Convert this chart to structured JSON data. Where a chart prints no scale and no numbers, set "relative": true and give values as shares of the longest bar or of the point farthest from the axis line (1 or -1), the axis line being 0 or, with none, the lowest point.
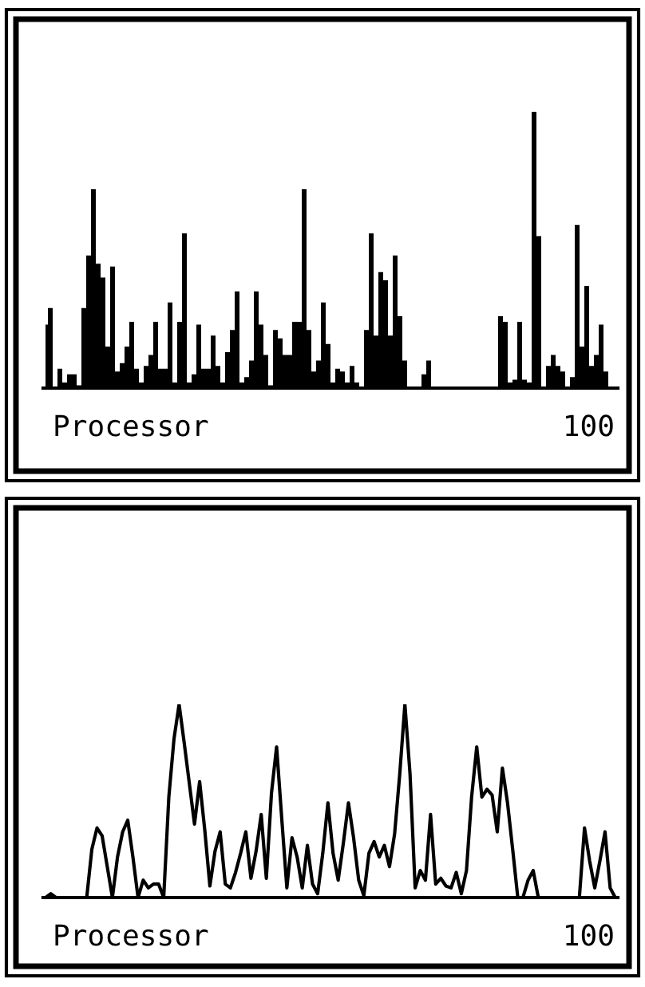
{
  "chart_data": [
    {
      "type": "area",
      "relative": true,
      "annotations": [
        "Processor",
        "100"
      ],
      "categories": [
        null,
        null,
        null,
        null,
        null,
        null,
        null,
        null,
        null,
        null,
        null,
        null,
        null,
        null,
        null,
        null,
        null,
        null,
        null,
        null,
        null,
        null,
        null,
        null,
        null,
        null,
        null,
        null,
        null,
        null,
        null,
        null,
        null,
        null,
        null,
        null,
        null,
        null,
        null,
        null,
        null,
        null,
        null,
        null,
        null,
        null,
        null,
        null,
        null,
        null,
        null,
        null,
        null,
        null,
        null,
        null,
        null,
        null,
        null,
        null,
        null,
        null,
        null,
        null,
        null,
        null,
        null,
        null,
        null,
        null,
        null,
        null,
        null,
        null,
        null,
        null,
        null,
        null,
        null,
        null,
        null,
        null,
        null,
        null,
        null,
        null,
        null,
        null,
        null,
        null,
        null,
        null,
        null,
        null,
        null,
        null,
        null,
        null,
        null,
        null,
        null,
        null,
        null,
        null,
        null,
        null,
        null,
        null,
        null,
        null,
        null,
        null,
        null,
        null,
        null,
        null,
        null,
        null,
        null,
        null
      ],
      "series": [
        {
          "color": "#000000",
          "values": [
            0.23,
            0.29,
            0,
            0.07,
            0.02,
            0.05,
            0.05,
            0.01,
            0.29,
            0.48,
            0.72,
            0.45,
            0.4,
            0.15,
            0.44,
            0.06,
            0.09,
            0.15,
            0.24,
            0.07,
            0.02,
            0.08,
            0.12,
            0.24,
            0.07,
            0.07,
            0.31,
            0.02,
            0.24,
            0.56,
            0.02,
            0.05,
            0.23,
            0.07,
            0.07,
            0.19,
            0.08,
            0.02,
            0.13,
            0.21,
            0.35,
            0.02,
            0.04,
            0.1,
            0.35,
            0.23,
            0.12,
            0.01,
            0.21,
            0.18,
            0.12,
            0.12,
            0.24,
            0.24,
            0.72,
            0.21,
            0.06,
            0.1,
            0.31,
            0.16,
            0.02,
            0.07,
            0.06,
            0.02,
            0.08,
            0.02,
            0,
            0.21,
            0.56,
            0.19,
            0.42,
            0.39,
            0.19,
            0.48,
            0.26,
            0.1,
            0,
            0,
            0,
            0.05,
            0.1,
            0,
            0,
            0,
            0,
            0,
            0,
            0,
            0,
            0,
            0,
            0,
            0,
            0,
            0,
            0.26,
            0.24,
            0.02,
            0.03,
            0.24,
            0.03,
            0.02,
            1.0,
            0.55,
            0,
            0.08,
            0.12,
            0.08,
            0.06,
            0,
            0.04,
            0.59,
            0.15,
            0.37,
            0.08,
            0.12,
            0.23,
            0.06,
            0,
            0
          ]
        }
      ]
    },
    {
      "type": "line",
      "relative": true,
      "annotations": [
        "Processor",
        "100"
      ],
      "categories": [
        null,
        null,
        null,
        null,
        null,
        null,
        null,
        null,
        null,
        null,
        null,
        null,
        null,
        null,
        null,
        null,
        null,
        null,
        null,
        null,
        null,
        null,
        null,
        null,
        null,
        null,
        null,
        null,
        null,
        null,
        null,
        null,
        null,
        null,
        null,
        null,
        null,
        null,
        null,
        null,
        null,
        null,
        null,
        null,
        null,
        null,
        null,
        null,
        null,
        null,
        null,
        null,
        null,
        null,
        null,
        null,
        null,
        null,
        null,
        null,
        null,
        null,
        null,
        null,
        null,
        null,
        null,
        null,
        null,
        null,
        null,
        null,
        null,
        null,
        null,
        null,
        null,
        null,
        null,
        null,
        null,
        null,
        null,
        null,
        null,
        null,
        null,
        null,
        null,
        null,
        null,
        null,
        null,
        null,
        null,
        null,
        null,
        null,
        null,
        null,
        null,
        null,
        null,
        null,
        null,
        null,
        null,
        null,
        null,
        null,
        null,
        null
      ],
      "series": [
        {
          "color": "#000000",
          "values": [
            0,
            0.02,
            0,
            0,
            0,
            0,
            0,
            0,
            0,
            0.25,
            0.36,
            0.32,
            0.16,
            0,
            0.21,
            0.34,
            0.4,
            0.21,
            0,
            0.09,
            0.05,
            0.07,
            0.07,
            0,
            0.52,
            0.82,
            1.0,
            0.8,
            0.59,
            0.38,
            0.6,
            0.35,
            0.06,
            0.24,
            0.34,
            0.07,
            0.05,
            0.13,
            0.23,
            0.34,
            0.1,
            0.24,
            0.43,
            0.1,
            0.54,
            0.78,
            0.41,
            0.05,
            0.31,
            0.21,
            0.05,
            0.27,
            0.07,
            0.02,
            0.23,
            0.49,
            0.23,
            0.09,
            0.28,
            0.49,
            0.31,
            0.09,
            0.01,
            0.23,
            0.29,
            0.21,
            0.27,
            0.16,
            0.33,
            0.64,
            1.0,
            0.64,
            0.05,
            0.14,
            0.09,
            0.43,
            0.07,
            0.1,
            0.06,
            0.05,
            0.13,
            0.02,
            0.14,
            0.52,
            0.78,
            0.52,
            0.56,
            0.53,
            0.34,
            0.67,
            0.49,
            0.25,
            0,
            0,
            0.09,
            0.14,
            0,
            0,
            0,
            0,
            0,
            0,
            0,
            0,
            0,
            0.36,
            0.19,
            0.05,
            0.19,
            0.34,
            0.05,
            0
          ]
        }
      ]
    }
  ]
}
